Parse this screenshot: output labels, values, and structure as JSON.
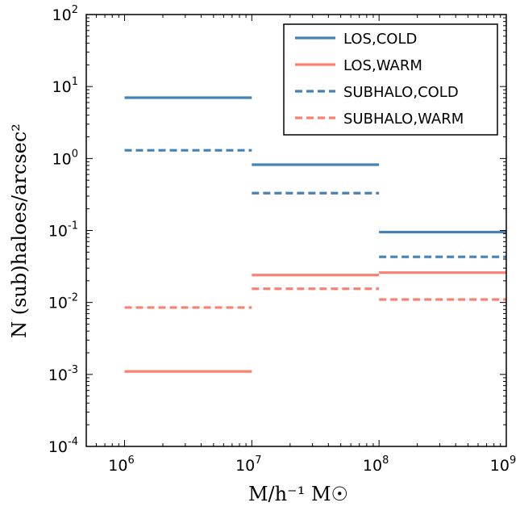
{
  "chart_data": {
    "type": "line",
    "xlabel": "M/h⁻¹ M☉",
    "ylabel": "N (sub)haloes/arcsec²",
    "xscale": "log",
    "yscale": "log",
    "xlim": [
      500000,
      1000000000
    ],
    "ylim": [
      0.0001,
      100
    ],
    "x_ticks": [
      {
        "base": "10",
        "exp": "6",
        "value": 1000000
      },
      {
        "base": "10",
        "exp": "7",
        "value": 10000000
      },
      {
        "base": "10",
        "exp": "8",
        "value": 100000000
      },
      {
        "base": "10",
        "exp": "9",
        "value": 1000000000
      }
    ],
    "y_ticks": [
      {
        "base": "10",
        "exp": "-4",
        "value": 0.0001
      },
      {
        "base": "10",
        "exp": "-3",
        "value": 0.001
      },
      {
        "base": "10",
        "exp": "-2",
        "value": 0.01
      },
      {
        "base": "10",
        "exp": "-1",
        "value": 0.1
      },
      {
        "base": "10",
        "exp": "0",
        "value": 1
      },
      {
        "base": "10",
        "exp": "1",
        "value": 10
      },
      {
        "base": "10",
        "exp": "2",
        "value": 100
      }
    ],
    "bins": [
      [
        1000000,
        10000000
      ],
      [
        10000000,
        100000000
      ],
      [
        100000000,
        1000000000
      ]
    ],
    "legend_position": "top-right",
    "grid": false,
    "series": [
      {
        "name": "LOS,COLD",
        "color": "#4682b4",
        "style": "solid",
        "values": [
          7.0,
          0.82,
          0.095
        ]
      },
      {
        "name": "LOS,WARM",
        "color": "#fa8072",
        "style": "solid",
        "values": [
          0.0011,
          0.024,
          0.026
        ]
      },
      {
        "name": "SUBHALO,COLD",
        "color": "#4682b4",
        "style": "dashed",
        "values": [
          1.3,
          0.33,
          0.043
        ]
      },
      {
        "name": "SUBHALO,WARM",
        "color": "#fa8072",
        "style": "dashed",
        "values": [
          0.0085,
          0.0155,
          0.011
        ]
      }
    ]
  }
}
